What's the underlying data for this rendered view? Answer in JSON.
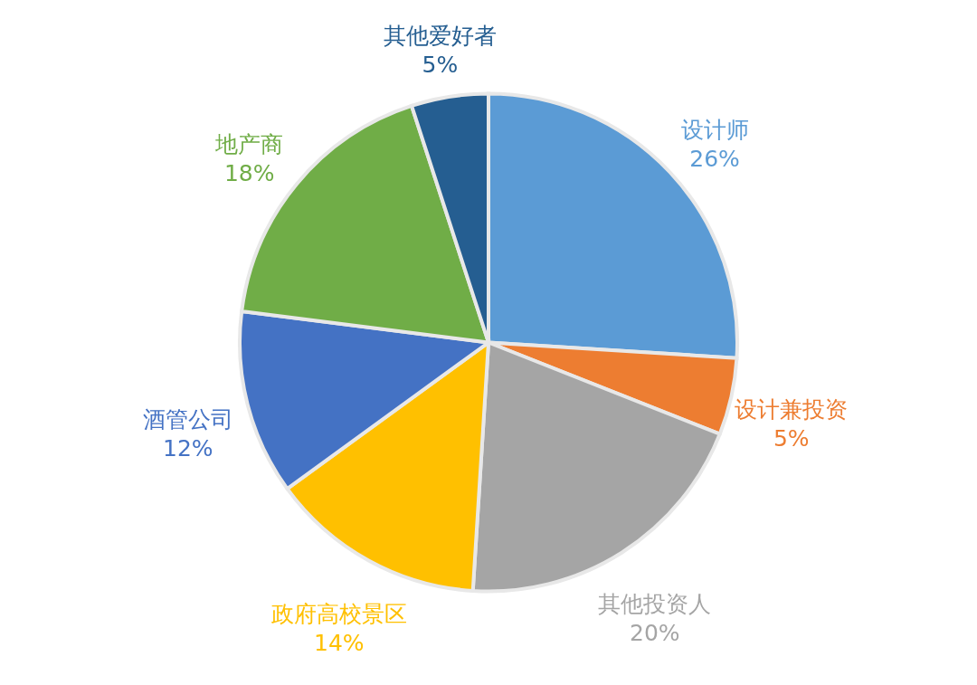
{
  "chart_data": {
    "type": "pie",
    "categories": [
      "设计师",
      "设计兼投资",
      "其他投资人",
      "政府高校景区",
      "酒管公司",
      "地产商",
      "其他爱好者"
    ],
    "values": [
      26,
      5,
      20,
      14,
      12,
      18,
      5
    ],
    "colors": [
      "#5b9bd5",
      "#ed7d31",
      "#a5a5a5",
      "#ffc000",
      "#4472c4",
      "#70ad47",
      "#255e91"
    ],
    "value_labels": [
      "26%",
      "5%",
      "20%",
      "14%",
      "12%",
      "18%",
      "5%"
    ]
  }
}
